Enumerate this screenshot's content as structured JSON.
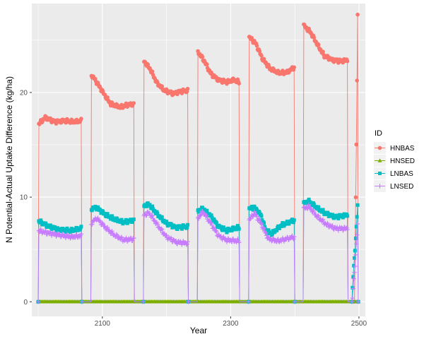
{
  "chart_data": {
    "type": "line",
    "title": "",
    "xlabel": "Year",
    "ylabel": "N Potential-Actual Uptake Difference (kg/ha)",
    "xlim": [
      1990,
      2510
    ],
    "ylim": [
      -1.4,
      28.5
    ],
    "xticks": [
      2100,
      2300,
      2500
    ],
    "xtick_labels": [
      "2100",
      "2300",
      "2500"
    ],
    "yticks": [
      0,
      10,
      20
    ],
    "ytick_labels": [
      "0",
      "10",
      "20"
    ],
    "grid": true,
    "legend": {
      "title": "ID",
      "placement": "right"
    },
    "series": [
      {
        "name": "HNBAS",
        "color": "#F8766D",
        "marker": "circle",
        "cycles": [
          {
            "s": 2001,
            "e": 2067,
            "pts": [
              [
                0,
                17.0
              ],
              [
                10,
                17.6
              ],
              [
                25,
                17.2
              ],
              [
                40,
                17.3
              ],
              [
                55,
                17.2
              ],
              [
                66,
                17.3
              ]
            ]
          },
          {
            "s": 2083,
            "e": 2149,
            "pts": [
              [
                0,
                21.7
              ],
              [
                8,
                21.0
              ],
              [
                18,
                20.0
              ],
              [
                30,
                18.9
              ],
              [
                45,
                18.6
              ],
              [
                55,
                18.8
              ],
              [
                66,
                18.9
              ]
            ]
          },
          {
            "s": 2165,
            "e": 2233,
            "pts": [
              [
                0,
                23.0
              ],
              [
                10,
                22.2
              ],
              [
                20,
                20.9
              ],
              [
                32,
                20.2
              ],
              [
                45,
                19.9
              ],
              [
                58,
                20.1
              ],
              [
                68,
                20.2
              ]
            ]
          },
          {
            "s": 2249,
            "e": 2313,
            "pts": [
              [
                0,
                23.9
              ],
              [
                10,
                23.0
              ],
              [
                20,
                21.8
              ],
              [
                32,
                21.2
              ],
              [
                45,
                21.0
              ],
              [
                56,
                21.2
              ],
              [
                64,
                21.0
              ]
            ]
          },
          {
            "s": 2329,
            "e": 2399,
            "pts": [
              [
                0,
                25.3
              ],
              [
                10,
                24.7
              ],
              [
                20,
                23.3
              ],
              [
                32,
                22.3
              ],
              [
                45,
                21.9
              ],
              [
                58,
                21.9
              ],
              [
                70,
                22.4
              ]
            ]
          },
          {
            "s": 2414,
            "e": 2482,
            "pts": [
              [
                0,
                26.4
              ],
              [
                10,
                25.8
              ],
              [
                22,
                24.5
              ],
              [
                32,
                23.5
              ],
              [
                45,
                23.1
              ],
              [
                58,
                23.0
              ],
              [
                68,
                23.1
              ]
            ]
          },
          {
            "s": 2494,
            "e": 2498,
            "pts": [
              [
                0,
                5.0
              ],
              [
                2,
                15.0
              ],
              [
                4,
                27.5
              ]
            ]
          }
        ]
      },
      {
        "name": "HNSED",
        "color": "#7CAE00",
        "marker": "triangle",
        "cycles": [
          {
            "s": 2001,
            "e": 2498,
            "pts": [
              [
                0,
                0.0
              ],
              [
                497,
                0.0
              ]
            ]
          }
        ]
      },
      {
        "name": "LNBAS",
        "color": "#00BFC4",
        "marker": "square",
        "cycles": [
          {
            "s": 2001,
            "e": 2067,
            "pts": [
              [
                0,
                7.7
              ],
              [
                12,
                7.3
              ],
              [
                30,
                6.9
              ],
              [
                50,
                6.8
              ],
              [
                66,
                7.0
              ]
            ]
          },
          {
            "s": 2083,
            "e": 2149,
            "pts": [
              [
                0,
                8.9
              ],
              [
                8,
                9.0
              ],
              [
                20,
                8.4
              ],
              [
                35,
                7.9
              ],
              [
                50,
                7.6
              ],
              [
                66,
                7.8
              ]
            ]
          },
          {
            "s": 2165,
            "e": 2233,
            "pts": [
              [
                0,
                9.2
              ],
              [
                8,
                9.3
              ],
              [
                20,
                8.4
              ],
              [
                35,
                7.5
              ],
              [
                50,
                7.1
              ],
              [
                68,
                7.2
              ]
            ]
          },
          {
            "s": 2249,
            "e": 2313,
            "pts": [
              [
                0,
                8.7
              ],
              [
                8,
                8.9
              ],
              [
                20,
                8.2
              ],
              [
                32,
                7.2
              ],
              [
                45,
                6.8
              ],
              [
                64,
                7.1
              ]
            ]
          },
          {
            "s": 2329,
            "e": 2399,
            "pts": [
              [
                0,
                8.9
              ],
              [
                8,
                9.0
              ],
              [
                18,
                8.3
              ],
              [
                26,
                6.8
              ],
              [
                35,
                6.5
              ],
              [
                50,
                7.3
              ],
              [
                70,
                7.8
              ]
            ]
          },
          {
            "s": 2414,
            "e": 2482,
            "pts": [
              [
                0,
                9.4
              ],
              [
                8,
                9.6
              ],
              [
                20,
                9.0
              ],
              [
                35,
                8.4
              ],
              [
                50,
                8.1
              ],
              [
                68,
                8.3
              ]
            ]
          },
          {
            "s": 2490,
            "e": 2498,
            "pts": [
              [
                0,
                1.5
              ],
              [
                4,
                5.0
              ],
              [
                8,
                9.3
              ]
            ]
          }
        ]
      },
      {
        "name": "LNSED",
        "color": "#C77CFF",
        "marker": "plus",
        "cycles": [
          {
            "s": 2001,
            "e": 2067,
            "pts": [
              [
                0,
                6.8
              ],
              [
                12,
                6.6
              ],
              [
                30,
                6.4
              ],
              [
                50,
                6.2
              ],
              [
                66,
                6.3
              ]
            ]
          },
          {
            "s": 2083,
            "e": 2149,
            "pts": [
              [
                0,
                7.5
              ],
              [
                8,
                8.0
              ],
              [
                20,
                7.2
              ],
              [
                35,
                6.4
              ],
              [
                50,
                5.9
              ],
              [
                66,
                6.0
              ]
            ]
          },
          {
            "s": 2165,
            "e": 2233,
            "pts": [
              [
                0,
                8.3
              ],
              [
                8,
                8.5
              ],
              [
                20,
                7.4
              ],
              [
                35,
                6.2
              ],
              [
                50,
                5.7
              ],
              [
                68,
                5.6
              ]
            ]
          },
          {
            "s": 2249,
            "e": 2313,
            "pts": [
              [
                0,
                8.0
              ],
              [
                8,
                8.6
              ],
              [
                20,
                7.5
              ],
              [
                32,
                6.3
              ],
              [
                45,
                5.9
              ],
              [
                64,
                5.8
              ]
            ]
          },
          {
            "s": 2329,
            "e": 2399,
            "pts": [
              [
                0,
                7.8
              ],
              [
                8,
                8.5
              ],
              [
                18,
                7.5
              ],
              [
                30,
                6.0
              ],
              [
                45,
                5.8
              ],
              [
                70,
                6.2
              ]
            ]
          },
          {
            "s": 2414,
            "e": 2482,
            "pts": [
              [
                0,
                8.9
              ],
              [
                8,
                9.1
              ],
              [
                20,
                8.2
              ],
              [
                35,
                7.4
              ],
              [
                50,
                7.0
              ],
              [
                68,
                7.0
              ]
            ]
          },
          {
            "s": 2490,
            "e": 2498,
            "pts": [
              [
                0,
                0.5
              ],
              [
                4,
                3.5
              ],
              [
                8,
                7.5
              ]
            ]
          }
        ]
      }
    ]
  }
}
